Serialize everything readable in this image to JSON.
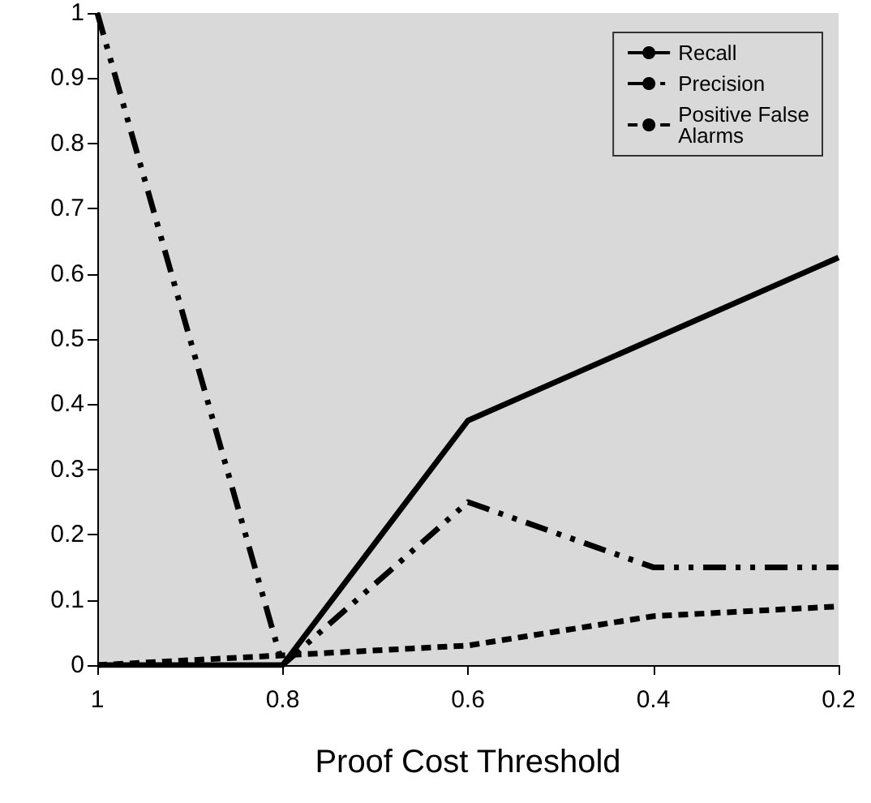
{
  "chart_data": {
    "type": "line",
    "xlabel": "Proof Cost Threshold",
    "x": [
      1,
      0.8,
      0.6,
      0.4,
      0.2
    ],
    "series": [
      {
        "name": "Recall",
        "color": "#000000",
        "line_style": "solid",
        "values": [
          0,
          0,
          0.375,
          0.5,
          0.625
        ]
      },
      {
        "name": "Precision",
        "color": "#000000",
        "line_style": "dashed",
        "values": [
          1,
          0,
          0.25,
          0.15,
          0.15
        ]
      },
      {
        "name": "Positive False\nAlarms",
        "color": "#000000",
        "line_style": "dotted",
        "values": [
          0,
          0.015,
          0.03,
          0.075,
          0.09
        ]
      }
    ],
    "xlim": [
      1,
      0.2
    ],
    "xticks": [
      1,
      0.8,
      0.6,
      0.4,
      0.2
    ],
    "ylim": [
      0,
      1
    ],
    "yticks": [
      0,
      0.1,
      0.2,
      0.3,
      0.4,
      0.5,
      0.6,
      0.7,
      0.8,
      0.9,
      1
    ],
    "grid": false,
    "legend": "top right",
    "marker": "none"
  }
}
